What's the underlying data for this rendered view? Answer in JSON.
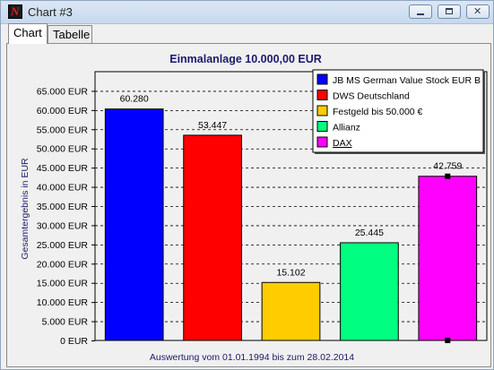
{
  "window": {
    "title": "Chart #3",
    "buttons": [
      "minimize",
      "maximize",
      "close"
    ]
  },
  "tabs": [
    {
      "label": "Chart",
      "active": true
    },
    {
      "label": "Tabelle",
      "active": false
    }
  ],
  "chart_data": {
    "type": "bar",
    "title": "Einmalanlage 10.000,00 EUR",
    "ylabel": "Gesamtergebnis in EUR",
    "xlabel": "Auswertung vom 01.01.1994 bis zum 28.02.2014",
    "ylim": [
      0,
      70000
    ],
    "yticks": [
      0,
      5000,
      10000,
      15000,
      20000,
      25000,
      30000,
      35000,
      40000,
      45000,
      50000,
      55000,
      60000,
      65000
    ],
    "ytick_labels": [
      "0 EUR",
      "5.000 EUR",
      "10.000 EUR",
      "15.000 EUR",
      "20.000 EUR",
      "25.000 EUR",
      "30.000 EUR",
      "35.000 EUR",
      "40.000 EUR",
      "45.000 EUR",
      "50.000 EUR",
      "55.000 EUR",
      "60.000 EUR",
      "65.000 EUR"
    ],
    "grid": true,
    "legend_position": "top-right",
    "series": [
      {
        "name": "JB MS German Value Stock EUR B",
        "value": 60280,
        "label": "60.280",
        "color": "#0000ff"
      },
      {
        "name": "DWS Deutschland",
        "value": 53447,
        "label": "53.447",
        "color": "#ff0000"
      },
      {
        "name": "Festgeld bis 50.000 €",
        "value": 15102,
        "label": "15.102",
        "color": "#ffcc00"
      },
      {
        "name": "Allianz",
        "value": 25445,
        "label": "25.445",
        "color": "#00ff80"
      },
      {
        "name": "DAX",
        "value": 42759,
        "label": "42.759",
        "color": "#ff00ff",
        "selected": true
      }
    ]
  }
}
